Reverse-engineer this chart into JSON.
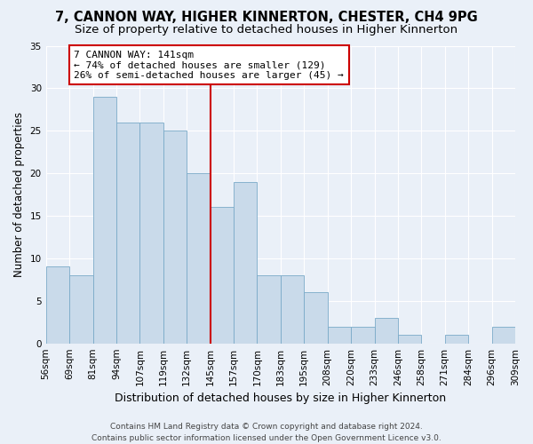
{
  "title": "7, CANNON WAY, HIGHER KINNERTON, CHESTER, CH4 9PG",
  "subtitle": "Size of property relative to detached houses in Higher Kinnerton",
  "xlabel": "Distribution of detached houses by size in Higher Kinnerton",
  "ylabel": "Number of detached properties",
  "bar_values": [
    9,
    8,
    29,
    26,
    26,
    25,
    20,
    16,
    19,
    8,
    8,
    6,
    2,
    2,
    3,
    1,
    0,
    1,
    0,
    2
  ],
  "bin_labels": [
    "56sqm",
    "69sqm",
    "81sqm",
    "94sqm",
    "107sqm",
    "119sqm",
    "132sqm",
    "145sqm",
    "157sqm",
    "170sqm",
    "183sqm",
    "195sqm",
    "208sqm",
    "220sqm",
    "233sqm",
    "246sqm",
    "258sqm",
    "271sqm",
    "284sqm",
    "296sqm",
    "309sqm"
  ],
  "bar_color": "#c9daea",
  "bar_edge_color": "#7aaac8",
  "annotation_text": "7 CANNON WAY: 141sqm\n← 74% of detached houses are smaller (129)\n26% of semi-detached houses are larger (45) →",
  "annotation_box_color": "#ffffff",
  "annotation_border_color": "#cc0000",
  "vline_color": "#cc0000",
  "vline_bin_index": 7,
  "ylim": [
    0,
    35
  ],
  "yticks": [
    0,
    5,
    10,
    15,
    20,
    25,
    30,
    35
  ],
  "background_color": "#eaf0f8",
  "footer_text": "Contains HM Land Registry data © Crown copyright and database right 2024.\nContains public sector information licensed under the Open Government Licence v3.0.",
  "title_fontsize": 10.5,
  "subtitle_fontsize": 9.5,
  "xlabel_fontsize": 9,
  "ylabel_fontsize": 8.5,
  "tick_fontsize": 7.5,
  "annotation_fontsize": 8,
  "footer_fontsize": 6.5
}
